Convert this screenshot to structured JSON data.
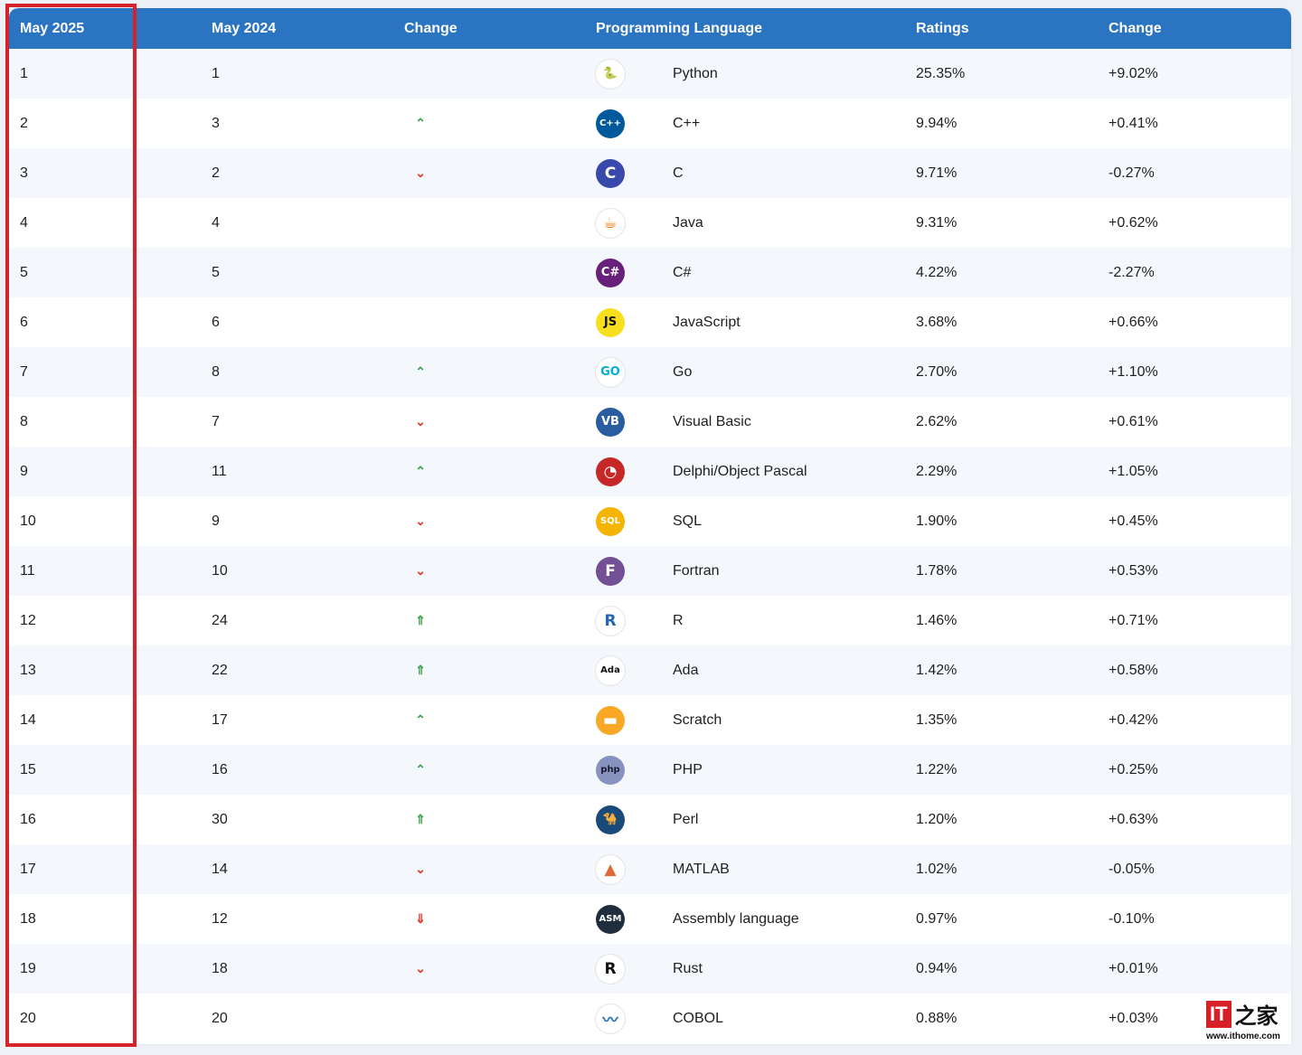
{
  "columns": {
    "rank": "May 2025",
    "prev": "May 2024",
    "change": "Change",
    "language": "Programming Language",
    "ratings": "Ratings",
    "diff": "Change"
  },
  "colors": {
    "header_bg": "#2a74c2",
    "highlight": "#d6222b",
    "arrow_up": "#3ea14b",
    "arrow_up_double": "#3ea14b",
    "arrow_down": "#e0392b"
  },
  "rows": [
    {
      "rank": "1",
      "prev": "1",
      "change": "none",
      "language": "Python",
      "ratings": "25.35%",
      "diff": "+9.02%",
      "icon": "python-icon"
    },
    {
      "rank": "2",
      "prev": "3",
      "change": "up",
      "language": "C++",
      "ratings": "9.94%",
      "diff": "+0.41%",
      "icon": "cpp-icon"
    },
    {
      "rank": "3",
      "prev": "2",
      "change": "down",
      "language": "C",
      "ratings": "9.71%",
      "diff": "-0.27%",
      "icon": "c-icon"
    },
    {
      "rank": "4",
      "prev": "4",
      "change": "none",
      "language": "Java",
      "ratings": "9.31%",
      "diff": "+0.62%",
      "icon": "java-icon"
    },
    {
      "rank": "5",
      "prev": "5",
      "change": "none",
      "language": "C#",
      "ratings": "4.22%",
      "diff": "-2.27%",
      "icon": "csharp-icon"
    },
    {
      "rank": "6",
      "prev": "6",
      "change": "none",
      "language": "JavaScript",
      "ratings": "3.68%",
      "diff": "+0.66%",
      "icon": "javascript-icon"
    },
    {
      "rank": "7",
      "prev": "8",
      "change": "up",
      "language": "Go",
      "ratings": "2.70%",
      "diff": "+1.10%",
      "icon": "go-icon"
    },
    {
      "rank": "8",
      "prev": "7",
      "change": "down",
      "language": "Visual Basic",
      "ratings": "2.62%",
      "diff": "+0.61%",
      "icon": "visual-basic-icon"
    },
    {
      "rank": "9",
      "prev": "11",
      "change": "up",
      "language": "Delphi/Object Pascal",
      "ratings": "2.29%",
      "diff": "+1.05%",
      "icon": "delphi-icon"
    },
    {
      "rank": "10",
      "prev": "9",
      "change": "down",
      "language": "SQL",
      "ratings": "1.90%",
      "diff": "+0.45%",
      "icon": "sql-icon"
    },
    {
      "rank": "11",
      "prev": "10",
      "change": "down",
      "language": "Fortran",
      "ratings": "1.78%",
      "diff": "+0.53%",
      "icon": "fortran-icon"
    },
    {
      "rank": "12",
      "prev": "24",
      "change": "up2",
      "language": "R",
      "ratings": "1.46%",
      "diff": "+0.71%",
      "icon": "r-icon"
    },
    {
      "rank": "13",
      "prev": "22",
      "change": "up2",
      "language": "Ada",
      "ratings": "1.42%",
      "diff": "+0.58%",
      "icon": "ada-icon"
    },
    {
      "rank": "14",
      "prev": "17",
      "change": "up",
      "language": "Scratch",
      "ratings": "1.35%",
      "diff": "+0.42%",
      "icon": "scratch-icon"
    },
    {
      "rank": "15",
      "prev": "16",
      "change": "up",
      "language": "PHP",
      "ratings": "1.22%",
      "diff": "+0.25%",
      "icon": "php-icon"
    },
    {
      "rank": "16",
      "prev": "30",
      "change": "up2",
      "language": "Perl",
      "ratings": "1.20%",
      "diff": "+0.63%",
      "icon": "perl-icon"
    },
    {
      "rank": "17",
      "prev": "14",
      "change": "down",
      "language": "MATLAB",
      "ratings": "1.02%",
      "diff": "-0.05%",
      "icon": "matlab-icon"
    },
    {
      "rank": "18",
      "prev": "12",
      "change": "down2",
      "language": "Assembly language",
      "ratings": "0.97%",
      "diff": "-0.10%",
      "icon": "assembly-icon"
    },
    {
      "rank": "19",
      "prev": "18",
      "change": "down",
      "language": "Rust",
      "ratings": "0.94%",
      "diff": "+0.01%",
      "icon": "rust-icon"
    },
    {
      "rank": "20",
      "prev": "20",
      "change": "none",
      "language": "COBOL",
      "ratings": "0.88%",
      "diff": "+0.03%",
      "icon": "cobol-icon"
    }
  ],
  "icons": {
    "python-icon": {
      "glyph": "🐍",
      "bg": "#ffffff",
      "fg": "#3572a5"
    },
    "cpp-icon": {
      "glyph": "C++",
      "bg": "#00599c",
      "fg": "#ffffff"
    },
    "c-icon": {
      "glyph": "C",
      "bg": "#3949ab",
      "fg": "#ffffff"
    },
    "java-icon": {
      "glyph": "☕",
      "bg": "#ffffff",
      "fg": "#e76f00"
    },
    "csharp-icon": {
      "glyph": "C#",
      "bg": "#68217a",
      "fg": "#ffffff"
    },
    "javascript-icon": {
      "glyph": "JS",
      "bg": "#f7df1e",
      "fg": "#111111"
    },
    "go-icon": {
      "glyph": "GO",
      "bg": "#ffffff",
      "fg": "#00add8"
    },
    "visual-basic-icon": {
      "glyph": "VB",
      "bg": "#2a5d9f",
      "fg": "#ffffff"
    },
    "delphi-icon": {
      "glyph": "◔",
      "bg": "#c62828",
      "fg": "#ffffff"
    },
    "sql-icon": {
      "glyph": "SQL",
      "bg": "#f5b400",
      "fg": "#ffffff"
    },
    "fortran-icon": {
      "glyph": "F",
      "bg": "#734f96",
      "fg": "#ffffff"
    },
    "r-icon": {
      "glyph": "R",
      "bg": "#ffffff",
      "fg": "#2165b6"
    },
    "ada-icon": {
      "glyph": "Ada",
      "bg": "#ffffff",
      "fg": "#111111"
    },
    "scratch-icon": {
      "glyph": "▬",
      "bg": "#f9a825",
      "fg": "#ffffff"
    },
    "php-icon": {
      "glyph": "php",
      "bg": "#8892bf",
      "fg": "#1a1a2e"
    },
    "perl-icon": {
      "glyph": "🐪",
      "bg": "#1a4a7a",
      "fg": "#ffffff"
    },
    "matlab-icon": {
      "glyph": "▲",
      "bg": "#ffffff",
      "fg": "#e16737"
    },
    "assembly-icon": {
      "glyph": "ASM",
      "bg": "#1f2d3d",
      "fg": "#ffffff"
    },
    "rust-icon": {
      "glyph": "R",
      "bg": "#ffffff",
      "fg": "#111111"
    },
    "cobol-icon": {
      "glyph": "〰",
      "bg": "#ffffff",
      "fg": "#2a74c2"
    }
  },
  "watermark": {
    "brand": "IT",
    "chinese": "之家",
    "url": "www.ithome.com"
  }
}
